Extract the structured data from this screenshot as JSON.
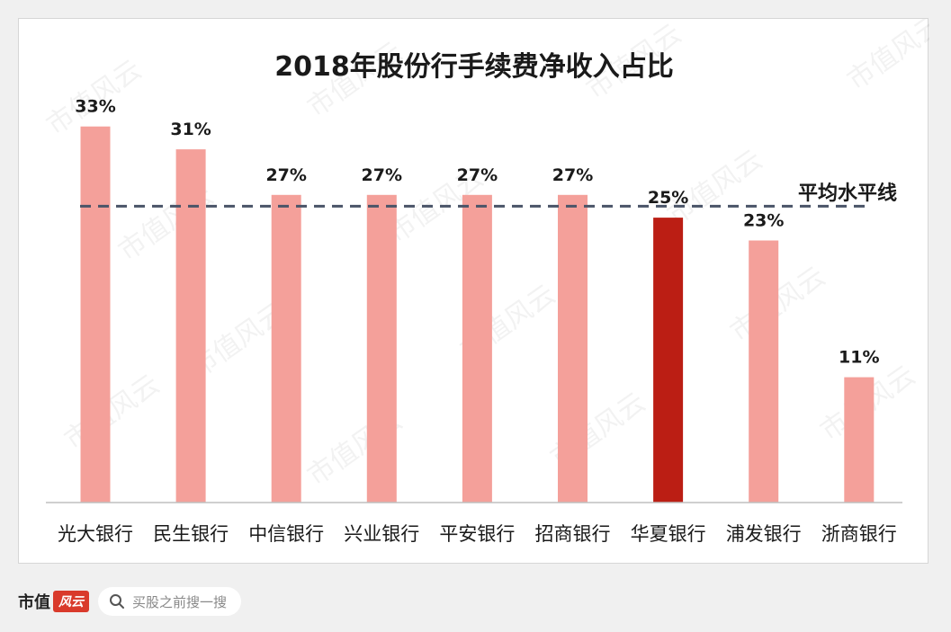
{
  "chart_data": {
    "type": "bar",
    "title": "2018年股份行手续费净收入占比",
    "categories": [
      "光大银行",
      "民生银行",
      "中信银行",
      "兴业银行",
      "平安银行",
      "招商银行",
      "华夏银行",
      "浦发银行",
      "浙商银行"
    ],
    "values": [
      33,
      31,
      27,
      27,
      27,
      27,
      25,
      23,
      11
    ],
    "value_labels": [
      "33%",
      "31%",
      "27%",
      "27%",
      "27%",
      "27%",
      "25%",
      "23%",
      "11%"
    ],
    "highlight_category": "华夏银行",
    "average_line": {
      "label": "平均水平线",
      "value": 26
    },
    "ylim": [
      0,
      37
    ],
    "xlabel": "",
    "ylabel": "",
    "grid": false,
    "colors": {
      "bar": "#f4a09a",
      "highlight": "#bb1e14",
      "average_line": "#4a5468",
      "text": "#1a1a1a",
      "axis": "#bfbfbf"
    }
  },
  "watermark": "市值风云",
  "footer": {
    "brand_name": "市值",
    "brand_logo": "风云",
    "search_placeholder": "买股之前搜一搜"
  }
}
